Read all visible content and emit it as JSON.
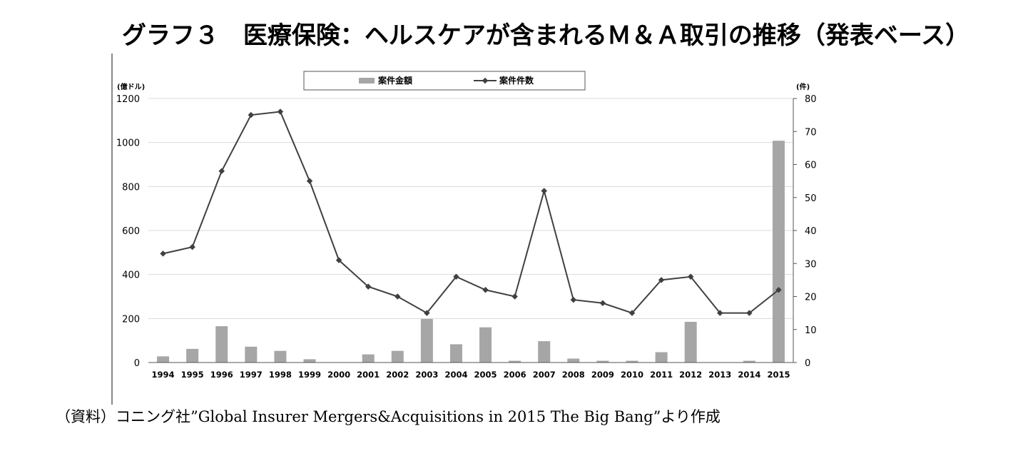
{
  "title": "グラフ３　医療保険：ヘルスケアが含まれるＭ＆Ａ取引の推移（発表ベース）",
  "source": "（資料）コニング社”Global Insurer Mergers&Acquisitions in 2015 The Big Bang”より作成",
  "colors": {
    "bar": "#a6a6a6",
    "line": "#404040",
    "grid": "#d9d9d9"
  },
  "chart_data": {
    "type": "bar",
    "categories": [
      "1994",
      "1995",
      "1996",
      "1997",
      "1998",
      "1999",
      "2000",
      "2001",
      "2002",
      "2003",
      "2004",
      "2005",
      "2006",
      "2007",
      "2008",
      "2009",
      "2010",
      "2011",
      "2012",
      "2013",
      "2014",
      "2015"
    ],
    "series": [
      {
        "name": "案件金額",
        "type": "bar",
        "axis": "left",
        "values": [
          28,
          62,
          165,
          72,
          53,
          15,
          0,
          37,
          53,
          198,
          83,
          160,
          8,
          97,
          18,
          8,
          8,
          47,
          185,
          0,
          8,
          1008
        ]
      },
      {
        "name": "案件件数",
        "type": "line",
        "axis": "right",
        "values": [
          33,
          35,
          58,
          75,
          76,
          55,
          31,
          23,
          20,
          15,
          26,
          22,
          20,
          52,
          19,
          18,
          15,
          25,
          26,
          15,
          15,
          22
        ]
      }
    ],
    "ylabel_left": "(億ドル)",
    "ylabel_right": "(件)",
    "ylim_left": [
      0,
      1200
    ],
    "ylim_right": [
      0,
      80
    ],
    "yticks_left": [
      "0",
      "200",
      "400",
      "600",
      "800",
      "1000",
      "1200"
    ],
    "yticks_right": [
      "0",
      "10",
      "20",
      "30",
      "40",
      "50",
      "60",
      "70",
      "80"
    ],
    "grid": true,
    "legend_position": "top-center"
  }
}
